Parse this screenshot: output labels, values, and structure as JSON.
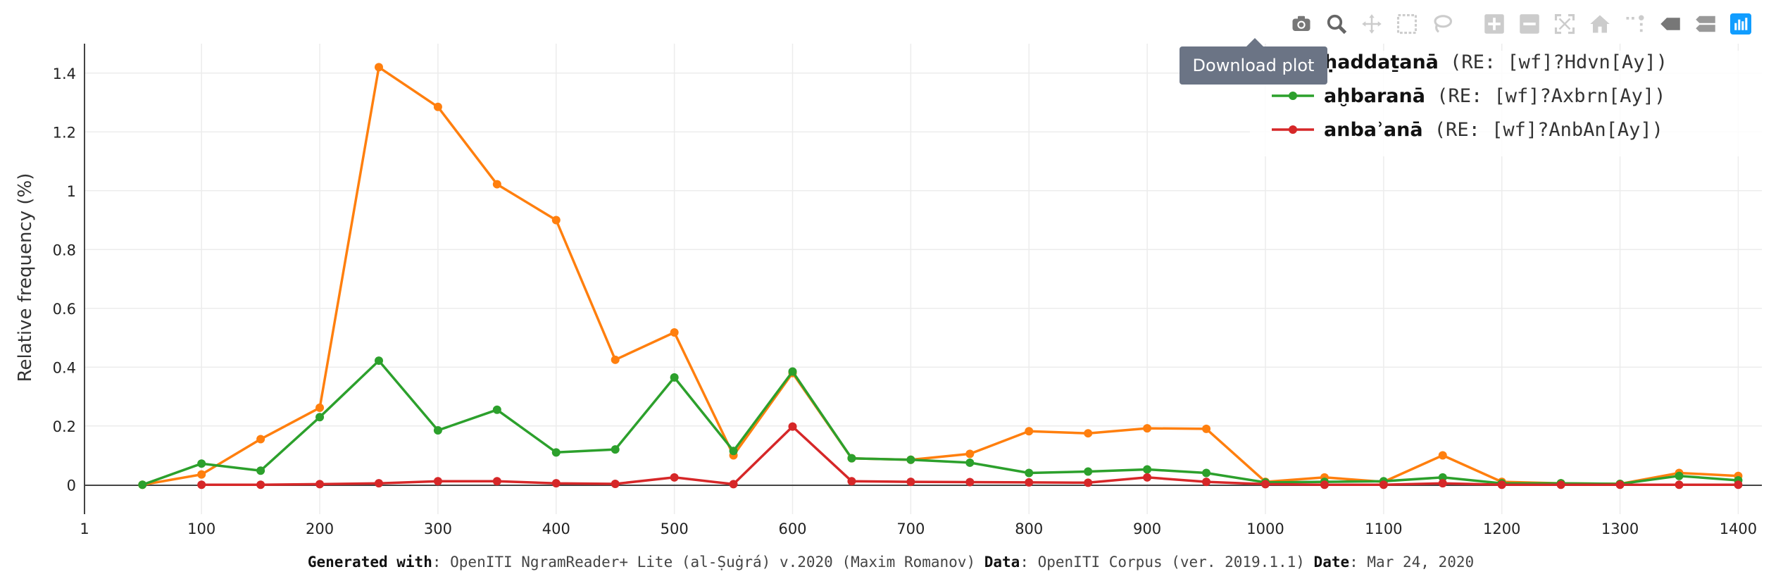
{
  "chart_data": {
    "type": "line",
    "ylabel": "Relative frequency (%)",
    "xlabel": "",
    "xlim": [
      1,
      1420
    ],
    "ylim": [
      -0.1,
      1.5
    ],
    "x_ticks": [
      1,
      100,
      200,
      300,
      400,
      500,
      600,
      700,
      800,
      900,
      1000,
      1100,
      1200,
      1300,
      1400
    ],
    "x_tick_labels": [
      "1",
      "100",
      "200",
      "300",
      "400",
      "500",
      "600",
      "700",
      "800",
      "900",
      "1000",
      "1100",
      "1200",
      "1300",
      "1400"
    ],
    "y_ticks": [
      0,
      0.2,
      0.4,
      0.6,
      0.8,
      1,
      1.2,
      1.4
    ],
    "y_tick_labels": [
      "0",
      "0.2",
      "0.4",
      "0.6",
      "0.8",
      "1",
      "1.2",
      "1.4"
    ],
    "grid": true,
    "legend_position": "top-right",
    "x": [
      50,
      100,
      150,
      200,
      250,
      300,
      350,
      400,
      450,
      500,
      550,
      600,
      650,
      700,
      750,
      800,
      850,
      900,
      950,
      1000,
      1050,
      1100,
      1150,
      1200,
      1250,
      1300,
      1350,
      1400
    ],
    "series": [
      {
        "name": "ḥaddaṯanā",
        "regex": "(RE: [wf]?Hdvn[Ay])",
        "color": "#ff7f0e",
        "values": [
          0,
          0.035,
          0.155,
          0.262,
          1.42,
          1.285,
          1.022,
          0.9,
          0.425,
          0.518,
          0.1,
          0.38,
          0.09,
          0.085,
          0.105,
          0.182,
          0.175,
          0.192,
          0.19,
          0.01,
          0.025,
          0.01,
          0.1,
          0.01,
          0.005,
          0.003,
          0.04,
          0.03
        ]
      },
      {
        "name": "aḫbaranā",
        "regex": "(RE: [wf]?Axbrn[Ay])",
        "color": "#2ca02c",
        "values": [
          0,
          0.072,
          0.048,
          0.23,
          0.422,
          0.185,
          0.255,
          0.11,
          0.12,
          0.365,
          0.115,
          0.385,
          0.09,
          0.085,
          0.075,
          0.04,
          0.045,
          0.052,
          0.04,
          0.008,
          0.01,
          0.012,
          0.025,
          0.005,
          0.005,
          0.003,
          0.03,
          0.015
        ]
      },
      {
        "name": "anbaʾanā",
        "regex": "(RE: [wf]?AnbAn[Ay])",
        "color": "#d62728",
        "values": [
          null,
          0,
          0,
          0.002,
          0.005,
          0.012,
          0.012,
          0.005,
          0.003,
          0.025,
          0.002,
          0.198,
          0.012,
          0.01,
          0.009,
          0.008,
          0.007,
          0.025,
          0.01,
          0.002,
          0,
          0,
          0.005,
          0,
          0,
          0,
          0,
          0
        ]
      }
    ]
  },
  "tooltip": "Download plot",
  "footer": {
    "generated_label": "Generated with",
    "generated_value": ": OpenITI NgramReader+ Lite (al-Ṣuġrá) v.2020 (Maxim Romanov) ",
    "data_label": "Data",
    "data_value": ": OpenITI Corpus (ver. 2019.1.1) ",
    "date_label": "Date",
    "date_value": ": Mar 24, 2020"
  },
  "modebar": [
    "camera-icon",
    "zoom-icon",
    "pan-icon",
    "box-select-icon",
    "lasso-icon",
    "zoom-in-icon",
    "zoom-out-icon",
    "autoscale-icon",
    "reset-axes-icon",
    "spike-lines-icon",
    "hover-closest-icon",
    "hover-compare-icon",
    "plotly-logo-icon"
  ]
}
